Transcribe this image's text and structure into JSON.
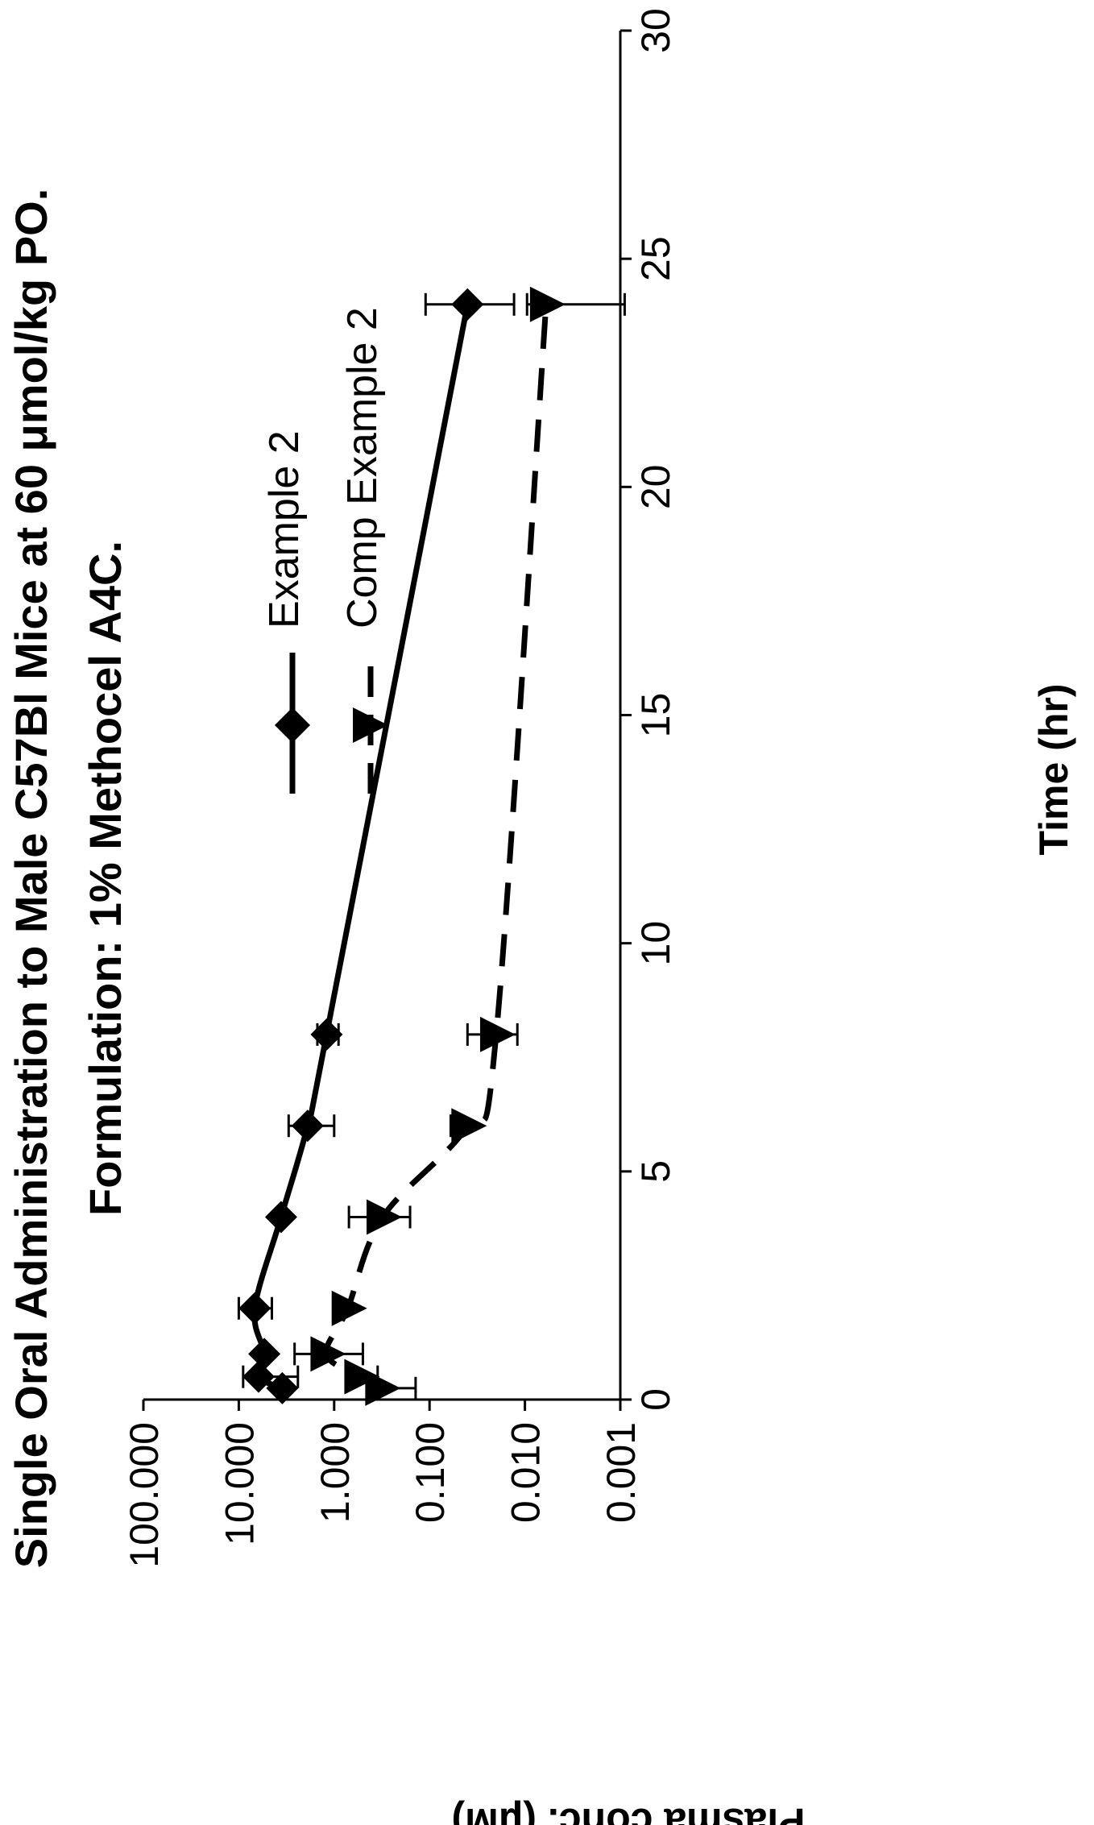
{
  "chart_data": {
    "type": "line",
    "title": "Single Oral Administration to Male C57Bl Mice at 60 μmol/kg PO.",
    "subtitle": "Formulation: 1% Methocel A4C.",
    "xlabel": "Time (hr)",
    "ylabel": "Plasma conc. (μM)",
    "xlim": [
      0,
      30
    ],
    "ylim": [
      0.001,
      100
    ],
    "yscale": "log",
    "x_ticks": [
      0,
      5,
      10,
      15,
      20,
      25,
      30
    ],
    "x_tick_labels": [
      "0",
      "5",
      "10",
      "15",
      "20",
      "25",
      "30"
    ],
    "y_ticks": [
      0.001,
      0.01,
      0.1,
      1,
      10,
      100
    ],
    "y_tick_labels": [
      "0.001",
      "0.010",
      "0.100",
      "1.000",
      "10.000",
      "100.000"
    ],
    "grid": false,
    "legend_position": "top-right",
    "series": [
      {
        "name": "Example 2",
        "marker": "diamond",
        "line_style": "solid",
        "x": [
          0.25,
          0.5,
          1,
          2,
          4,
          6,
          8,
          24
        ],
        "y": [
          3.5,
          6.2,
          5.4,
          6.8,
          3.6,
          1.9,
          1.2,
          0.04
        ],
        "err_low": [
          null,
          2.4,
          null,
          4.5,
          null,
          1.0,
          0.9,
          0.013
        ],
        "err_high": [
          null,
          9.0,
          null,
          10.0,
          null,
          3.0,
          1.5,
          0.11
        ]
      },
      {
        "name": "Comp Example 2",
        "marker": "triangle",
        "line_style": "dashed",
        "x": [
          0.25,
          0.5,
          1,
          2,
          4,
          6,
          8,
          24
        ],
        "y": [
          0.32,
          0.53,
          1.2,
          0.72,
          0.31,
          0.04,
          0.02,
          0.006
        ],
        "err_low": [
          0.14,
          0.35,
          0.5,
          null,
          0.16,
          null,
          0.012,
          0.0009
        ],
        "err_high": [
          null,
          0.75,
          2.6,
          null,
          0.7,
          0.06,
          0.04,
          0.0095
        ]
      }
    ]
  },
  "legend": {
    "items": [
      {
        "label": "Example 2"
      },
      {
        "label": "Comp Example 2"
      }
    ]
  }
}
